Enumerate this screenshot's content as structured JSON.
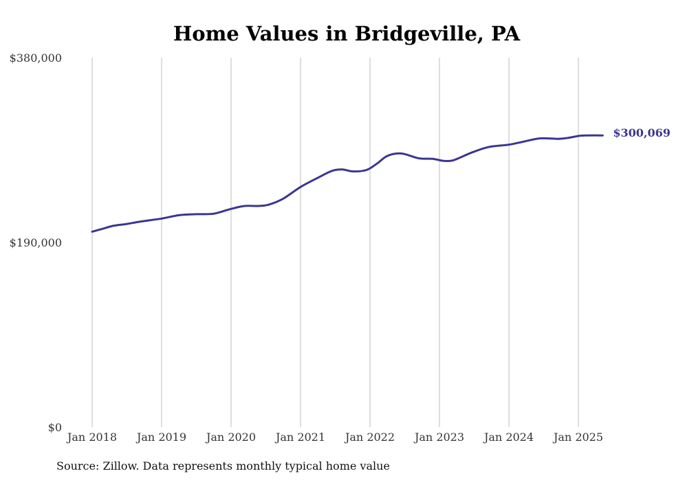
{
  "chart_data": {
    "type": "line",
    "title": "Home Values in Bridgeville, PA",
    "source": "Source: Zillow. Data represents monthly typical home value",
    "ylim": [
      0,
      380000
    ],
    "y_ticks": [
      {
        "value": 0,
        "label": "$0"
      },
      {
        "value": 190000,
        "label": "$190,000"
      },
      {
        "value": 380000,
        "label": "$380,000"
      }
    ],
    "x_ticks": [
      {
        "value": 2018.0,
        "label": "Jan 2018"
      },
      {
        "value": 2019.0,
        "label": "Jan 2019"
      },
      {
        "value": 2020.0,
        "label": "Jan 2020"
      },
      {
        "value": 2021.0,
        "label": "Jan 2021"
      },
      {
        "value": 2022.0,
        "label": "Jan 2022"
      },
      {
        "value": 2023.0,
        "label": "Jan 2023"
      },
      {
        "value": 2024.0,
        "label": "Jan 2024"
      },
      {
        "value": 2025.0,
        "label": "Jan 2025"
      }
    ],
    "xlim": [
      2018.0,
      2025.35
    ],
    "grid": "vertical",
    "line_color": "#3b3593",
    "end_label": "$300,069",
    "series": [
      {
        "x": [
          2018.0,
          2018.15,
          2018.3,
          2018.5,
          2018.7,
          2019.0,
          2019.25,
          2019.5,
          2019.75,
          2020.0,
          2020.2,
          2020.4,
          2020.55,
          2020.75,
          2021.0,
          2021.25,
          2021.45,
          2021.6,
          2021.75,
          2021.95,
          2022.1,
          2022.25,
          2022.45,
          2022.7,
          2022.9,
          2023.05,
          2023.2,
          2023.45,
          2023.7,
          2024.0,
          2024.2,
          2024.45,
          2024.7,
          2024.85,
          2025.0,
          2025.1,
          2025.35
        ],
        "values": [
          201000,
          204000,
          207000,
          209000,
          211500,
          214500,
          218000,
          219000,
          219500,
          224500,
          227500,
          227500,
          229000,
          235000,
          247000,
          256500,
          263500,
          265000,
          263000,
          264500,
          271000,
          279000,
          281500,
          276500,
          276000,
          274000,
          274500,
          282000,
          288000,
          290500,
          293500,
          297000,
          296500,
          297500,
          299500,
          300000,
          300069
        ]
      }
    ]
  }
}
